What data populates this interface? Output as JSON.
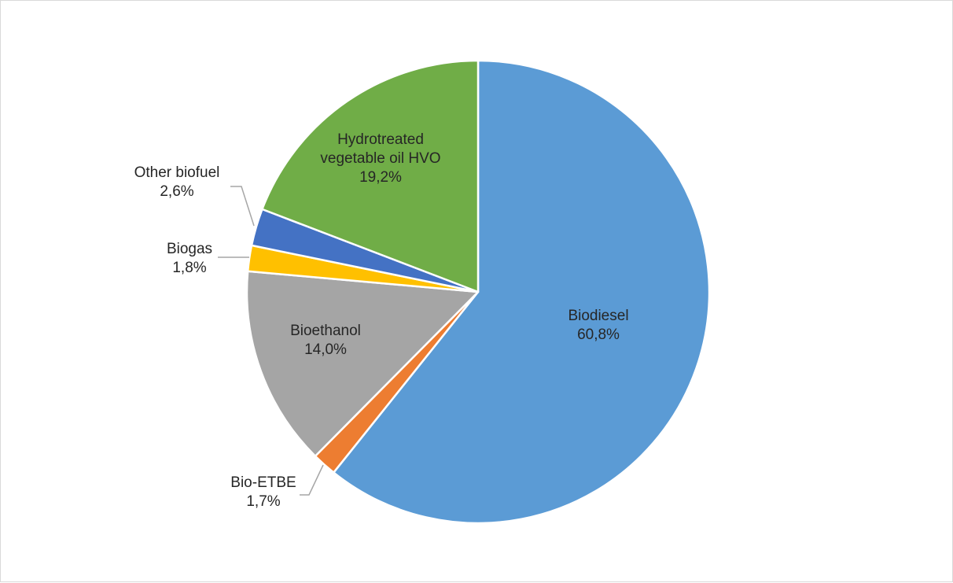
{
  "chart_data": {
    "type": "pie",
    "title": "",
    "start_angle_deg": 0,
    "direction": "clockwise",
    "slices": [
      {
        "label_lines": [
          "Biodiesel"
        ],
        "value_label": "60,8%",
        "value": 60.8,
        "color": "#5B9BD5"
      },
      {
        "label_lines": [
          "Bio-ETBE"
        ],
        "value_label": "1,7%",
        "value": 1.7,
        "color": "#ED7D31"
      },
      {
        "label_lines": [
          "Bioethanol"
        ],
        "value_label": "14,0%",
        "value": 14.0,
        "color": "#A5A5A5"
      },
      {
        "label_lines": [
          "Biogas"
        ],
        "value_label": "1,8%",
        "value": 1.8,
        "color": "#FFC000"
      },
      {
        "label_lines": [
          "Other biofuel"
        ],
        "value_label": "2,6%",
        "value": 2.6,
        "color": "#4472C4"
      },
      {
        "label_lines": [
          "Hydrotreated",
          "vegetable oil HVO"
        ],
        "value_label": "19,2%",
        "value": 19.2,
        "color": "#70AD47"
      }
    ],
    "legend": "none"
  }
}
